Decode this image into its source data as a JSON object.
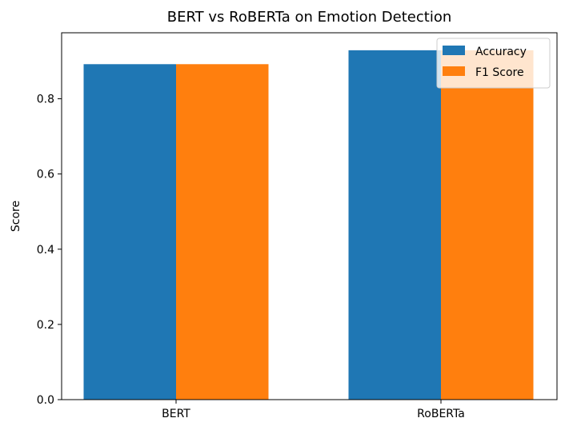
{
  "chart_data": {
    "type": "bar",
    "title": "BERT vs RoBERTa on Emotion Detection",
    "xlabel": "",
    "ylabel": "Score",
    "categories": [
      "BERT",
      "RoBERTa"
    ],
    "series": [
      {
        "name": "Accuracy",
        "color": "#1f77b4",
        "values": [
          0.892,
          0.929
        ]
      },
      {
        "name": "F1 Score",
        "color": "#ff7f0e",
        "values": [
          0.892,
          0.929
        ]
      }
    ],
    "ylim": [
      0,
      0.9755
    ],
    "yticks": [
      0.0,
      0.2,
      0.4,
      0.6,
      0.8
    ],
    "ytick_labels": [
      "0.0",
      "0.2",
      "0.4",
      "0.6",
      "0.8"
    ],
    "grid": false,
    "legend_position": "top-right"
  }
}
